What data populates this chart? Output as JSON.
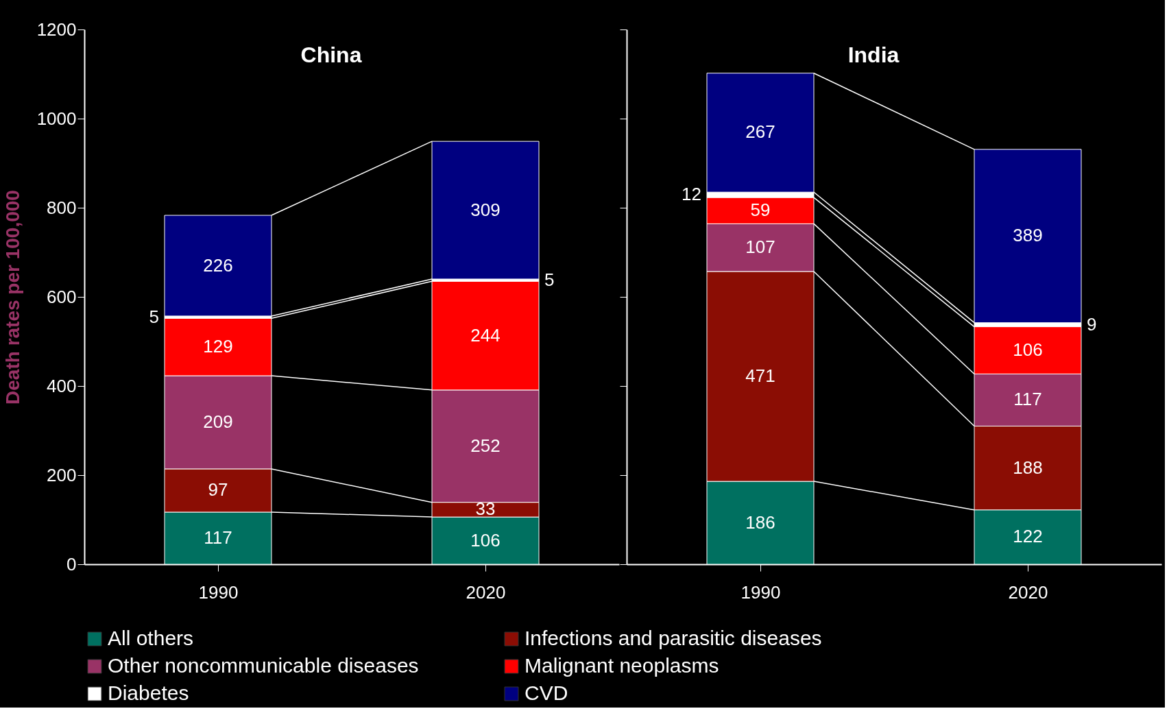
{
  "chart_data": [
    {
      "type": "bar",
      "title": "China",
      "ylabel": "Death rates per 100,000",
      "categories": [
        "1990",
        "2020"
      ],
      "stacked": true,
      "data_labels": true,
      "ylim": [
        0,
        1200
      ],
      "yticks": [
        0,
        200,
        400,
        600,
        800,
        1000,
        1200
      ],
      "grid": false,
      "legend": "bottom",
      "series": [
        {
          "name": "All others",
          "color": "#007060",
          "values": [
            117,
            106
          ]
        },
        {
          "name": "Infections and parasitic diseases",
          "color": "#8b0d04",
          "values": [
            97,
            33
          ]
        },
        {
          "name": "Other noncommunicable diseases",
          "color": "#993366",
          "values": [
            209,
            252
          ]
        },
        {
          "name": "Malignant neoplasms",
          "color": "#ff0000",
          "values": [
            129,
            244
          ]
        },
        {
          "name": "Diabetes",
          "color": "#ffffff",
          "values": [
            5,
            5
          ]
        },
        {
          "name": "CVD",
          "color": "#000080",
          "values": [
            226,
            309
          ]
        }
      ]
    },
    {
      "type": "bar",
      "title": "India",
      "categories": [
        "1990",
        "2020"
      ],
      "stacked": true,
      "data_labels": true,
      "ylim": [
        0,
        1200
      ],
      "yticks": [
        0,
        200,
        400,
        600,
        800,
        1000,
        1200
      ],
      "grid": false,
      "tick_labels": "x",
      "legend": "bottom",
      "series": [
        {
          "name": "All others",
          "color": "#007060",
          "values": [
            186,
            122
          ]
        },
        {
          "name": "Infections and parasitic diseases",
          "color": "#8b0d04",
          "values": [
            471,
            188
          ]
        },
        {
          "name": "Other noncommunicable diseases",
          "color": "#993366",
          "values": [
            107,
            117
          ]
        },
        {
          "name": "Malignant neoplasms",
          "color": "#ff0000",
          "values": [
            59,
            106
          ]
        },
        {
          "name": "Diabetes",
          "color": "#ffffff",
          "values": [
            12,
            9
          ]
        },
        {
          "name": "CVD",
          "color": "#000080",
          "values": [
            267,
            389
          ]
        }
      ]
    }
  ]
}
